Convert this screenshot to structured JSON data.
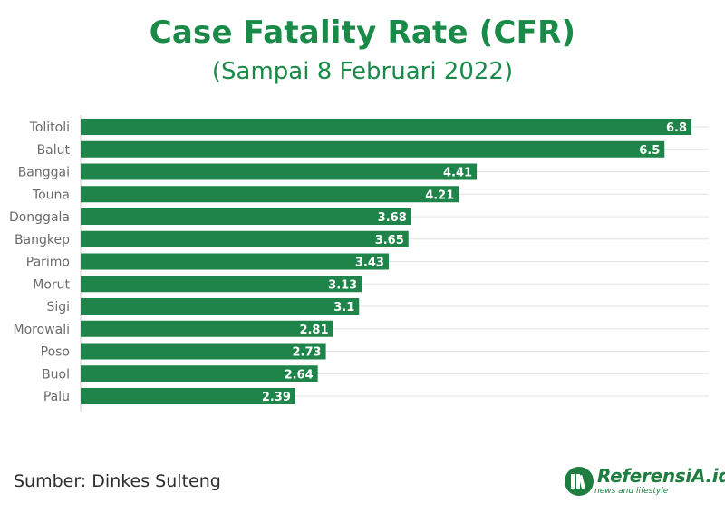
{
  "header": {
    "title": "Case Fatality Rate (CFR)",
    "subtitle": "(Sampai 8 Februari 2022)"
  },
  "footer": {
    "source": "Sumber: Dinkes Sulteng",
    "brand_name": "ReferensiA.id",
    "brand_tagline": "news and lifestyle"
  },
  "colors": {
    "accent": "#1a8a48",
    "bar": "#1e8449",
    "grid": "#e3e3e3"
  },
  "chart_data": {
    "type": "bar",
    "orientation": "horizontal",
    "title": "Case Fatality Rate (CFR)",
    "subtitle": "(Sampai 8 Februari 2022)",
    "categories": [
      "Tolitoli",
      "Balut",
      "Banggai",
      "Touna",
      "Donggala",
      "Bangkep",
      "Parimo",
      "Morut",
      "Sigi",
      "Morowali",
      "Poso",
      "Buol",
      "Palu"
    ],
    "values": [
      6.8,
      6.5,
      4.41,
      4.21,
      3.68,
      3.65,
      3.43,
      3.13,
      3.1,
      2.81,
      2.73,
      2.64,
      2.39
    ],
    "labels": [
      "6.8",
      "6.5",
      "4.41",
      "4.21",
      "3.68",
      "3.65",
      "3.43",
      "3.13",
      "3.1",
      "2.81",
      "2.73",
      "2.64",
      "2.39"
    ],
    "xlim": [
      0,
      6.8
    ],
    "xlabel": "",
    "ylabel": "",
    "grid": true,
    "legend": "none"
  }
}
